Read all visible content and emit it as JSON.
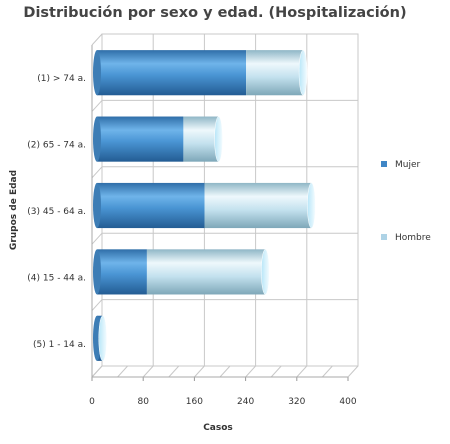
{
  "chart_data": {
    "type": "bar",
    "orientation": "horizontal",
    "stacked": true,
    "title": "Distribución por sexo y edad. (Hospitalización)",
    "xlabel": "Casos",
    "ylabel": "Grupos de Edad",
    "categories": [
      "(1) > 74 a.",
      "(2) 65 - 74 a.",
      "(3) 45 - 64 a.",
      "(4) 15 - 44 a.",
      "(5) 1 - 14 a."
    ],
    "series": [
      {
        "name": "Mujer",
        "values": [
          233,
          135,
          168,
          78,
          8
        ],
        "color": "#3f86c6"
      },
      {
        "name": "Hombre",
        "values": [
          89,
          55,
          167,
          185,
          1
        ],
        "color": "#aed3e6"
      }
    ],
    "xlim": [
      0,
      400
    ],
    "xticks": [
      0,
      80,
      160,
      240,
      320,
      400
    ],
    "grid": true,
    "legend_position": "right"
  }
}
